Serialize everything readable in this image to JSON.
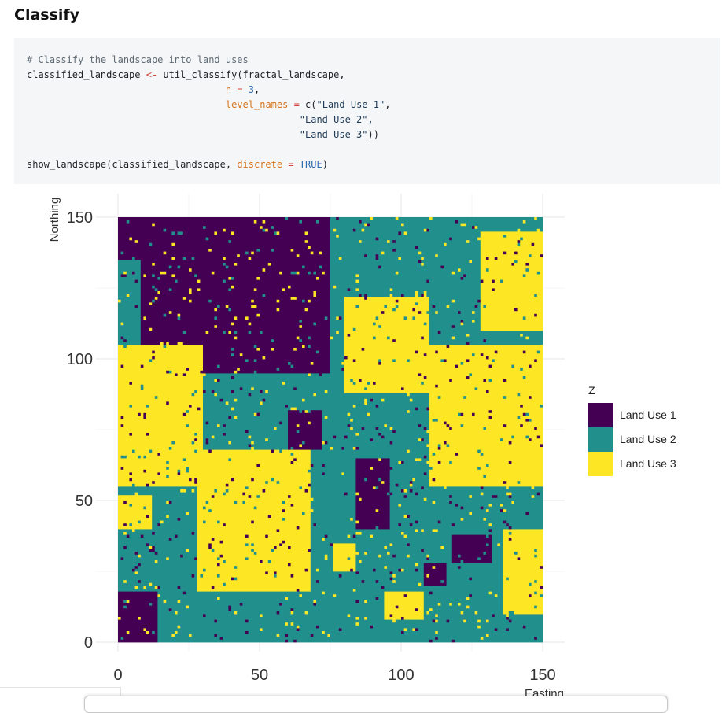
{
  "section": {
    "title": "Classify"
  },
  "code": {
    "lines": [
      [
        {
          "t": "# Classify the landscape into land uses",
          "c": "comment"
        }
      ],
      [
        {
          "t": "classified_landscape ",
          "c": "plain"
        },
        {
          "t": "<-",
          "c": "op"
        },
        {
          "t": " util_classify(fractal_landscape,",
          "c": "plain"
        }
      ],
      [
        {
          "t": "                                   ",
          "c": "plain"
        },
        {
          "t": "n",
          "c": "arg"
        },
        {
          "t": " = ",
          "c": "op"
        },
        {
          "t": "3",
          "c": "num"
        },
        {
          "t": ",",
          "c": "plain"
        }
      ],
      [
        {
          "t": "                                   ",
          "c": "plain"
        },
        {
          "t": "level_names",
          "c": "arg"
        },
        {
          "t": " = ",
          "c": "op"
        },
        {
          "t": "c(",
          "c": "plain"
        },
        {
          "t": "\"Land Use 1\"",
          "c": "str"
        },
        {
          "t": ",",
          "c": "plain"
        }
      ],
      [
        {
          "t": "                                                \"Land Use 2\",",
          "c": "str"
        }
      ],
      [
        {
          "t": "                                                \"Land Use 3\"",
          "c": "str"
        },
        {
          "t": "))",
          "c": "plain"
        }
      ],
      [
        {
          "t": "",
          "c": "plain"
        }
      ],
      [
        {
          "t": "show_landscape(classified_landscape, ",
          "c": "plain"
        },
        {
          "t": "discrete",
          "c": "arg"
        },
        {
          "t": " = ",
          "c": "op"
        },
        {
          "t": "TRUE",
          "c": "bool"
        },
        {
          "t": ")",
          "c": "plain"
        }
      ]
    ]
  },
  "chart_data": {
    "type": "heatmap",
    "title": "",
    "xlabel": "Easting",
    "ylabel": "Northing",
    "xlim": [
      0,
      150
    ],
    "ylim": [
      0,
      150
    ],
    "x_ticks": [
      0,
      50,
      100,
      150
    ],
    "y_ticks": [
      0,
      50,
      100,
      150
    ],
    "x_tick_labels": [
      "0",
      "50",
      "100",
      "150"
    ],
    "y_tick_labels": [
      "0",
      "50",
      "100",
      "150"
    ],
    "grid": true,
    "legend_position": "right",
    "legend_title": "Z",
    "categories": [
      "Land Use 1",
      "Land Use 2",
      "Land Use 3"
    ],
    "colors": [
      "#440154",
      "#21908c",
      "#fde725"
    ],
    "background_class": "Land Use 2",
    "regions": [
      {
        "class": "Land Use 1",
        "x": [
          8,
          75
        ],
        "y": [
          95,
          150
        ]
      },
      {
        "class": "Land Use 1",
        "x": [
          0,
          10
        ],
        "y": [
          135,
          150
        ]
      },
      {
        "class": "Land Use 1",
        "x": [
          60,
          72
        ],
        "y": [
          68,
          82
        ]
      },
      {
        "class": "Land Use 1",
        "x": [
          84,
          96
        ],
        "y": [
          40,
          65
        ]
      },
      {
        "class": "Land Use 1",
        "x": [
          118,
          132
        ],
        "y": [
          28,
          38
        ]
      },
      {
        "class": "Land Use 1",
        "x": [
          0,
          14
        ],
        "y": [
          0,
          18
        ]
      },
      {
        "class": "Land Use 1",
        "x": [
          108,
          116
        ],
        "y": [
          20,
          28
        ]
      },
      {
        "class": "Land Use 3",
        "x": [
          0,
          30
        ],
        "y": [
          55,
          105
        ]
      },
      {
        "class": "Land Use 3",
        "x": [
          28,
          68
        ],
        "y": [
          18,
          68
        ]
      },
      {
        "class": "Land Use 3",
        "x": [
          110,
          150
        ],
        "y": [
          55,
          105
        ]
      },
      {
        "class": "Land Use 3",
        "x": [
          80,
          110
        ],
        "y": [
          88,
          122
        ]
      },
      {
        "class": "Land Use 3",
        "x": [
          128,
          150
        ],
        "y": [
          110,
          145
        ]
      },
      {
        "class": "Land Use 3",
        "x": [
          94,
          108
        ],
        "y": [
          8,
          18
        ]
      },
      {
        "class": "Land Use 3",
        "x": [
          76,
          84
        ],
        "y": [
          25,
          35
        ]
      },
      {
        "class": "Land Use 3",
        "x": [
          136,
          150
        ],
        "y": [
          10,
          40
        ]
      },
      {
        "class": "Land Use 3",
        "x": [
          0,
          12
        ],
        "y": [
          40,
          52
        ]
      }
    ]
  }
}
